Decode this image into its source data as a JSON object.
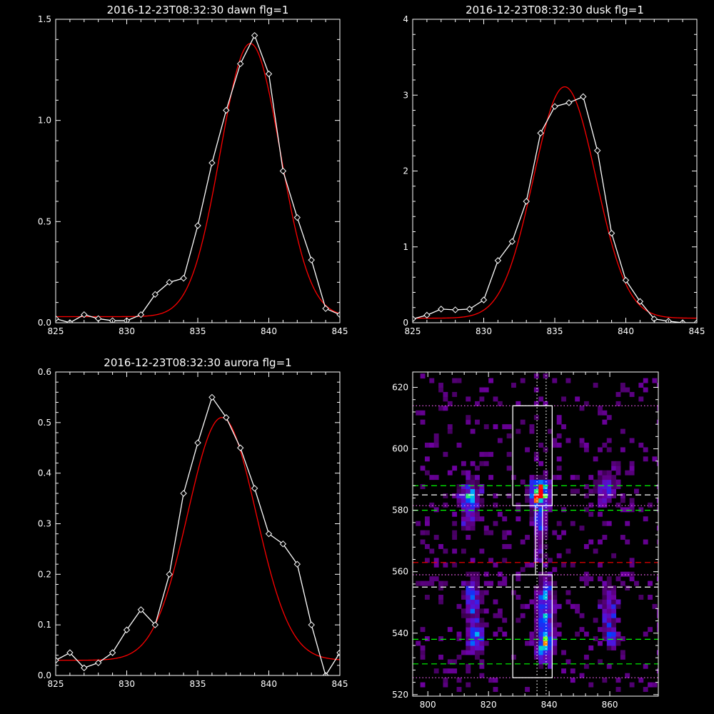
{
  "chart_data": [
    {
      "type": "line",
      "title": "2016-12-23T08:32:30 dawn flg=1",
      "xlim": [
        825,
        845
      ],
      "ylim": [
        0,
        1.5
      ],
      "xticks": [
        825,
        830,
        835,
        840,
        845
      ],
      "xtick_labels": [
        "825",
        "830",
        "835",
        "840",
        "845"
      ],
      "yticks": [
        0,
        0.5,
        1.0,
        1.5
      ],
      "ytick_labels": [
        "0.0",
        "0.5",
        "1.0",
        "1.5"
      ],
      "series": [
        {
          "style": "data",
          "color": "#ffffff",
          "x": [
            825,
            826,
            827,
            828,
            829,
            830,
            831,
            832,
            833,
            834,
            835,
            836,
            837,
            838,
            839,
            840,
            841,
            842,
            843,
            844,
            845
          ],
          "y": [
            0.02,
            0.0,
            0.04,
            0.02,
            0.01,
            0.01,
            0.04,
            0.14,
            0.2,
            0.22,
            0.48,
            0.79,
            1.05,
            1.28,
            1.42,
            1.23,
            0.75,
            0.52,
            0.31,
            0.07,
            0.04
          ]
        },
        {
          "style": "fit",
          "color": "#ff0000",
          "fit": {
            "amp": 1.35,
            "center": 838.7,
            "sigma": 2.1,
            "base": 0.03
          }
        }
      ]
    },
    {
      "type": "line",
      "title": "2016-12-23T08:32:30 dusk flg=1",
      "xlim": [
        825,
        845
      ],
      "ylim": [
        0,
        4
      ],
      "xticks": [
        825,
        830,
        835,
        840,
        845
      ],
      "xtick_labels": [
        "825",
        "830",
        "835",
        "840",
        "845"
      ],
      "yticks": [
        0,
        1,
        2,
        3,
        4
      ],
      "ytick_labels": [
        "0",
        "1",
        "2",
        "3",
        "4"
      ],
      "series": [
        {
          "style": "data",
          "color": "#ffffff",
          "x": [
            825,
            826,
            827,
            828,
            829,
            830,
            831,
            832,
            833,
            834,
            835,
            836,
            837,
            838,
            839,
            840,
            841,
            842,
            843,
            844,
            845
          ],
          "y": [
            0.05,
            0.1,
            0.18,
            0.17,
            0.18,
            0.3,
            0.82,
            1.07,
            1.6,
            2.5,
            2.85,
            2.9,
            2.98,
            2.27,
            1.18,
            0.56,
            0.28,
            0.05,
            0.02,
            0.0,
            0.0
          ]
        },
        {
          "style": "fit",
          "color": "#ff0000",
          "fit": {
            "amp": 3.05,
            "center": 835.7,
            "sigma": 2.2,
            "base": 0.06
          }
        }
      ]
    },
    {
      "type": "line",
      "title": "2016-12-23T08:32:30 aurora flg=1",
      "xlim": [
        825,
        845
      ],
      "ylim": [
        0,
        0.6
      ],
      "xticks": [
        825,
        830,
        835,
        840,
        845
      ],
      "xtick_labels": [
        "825",
        "830",
        "835",
        "840",
        "845"
      ],
      "yticks": [
        0,
        0.1,
        0.2,
        0.3,
        0.4,
        0.5,
        0.6
      ],
      "ytick_labels": [
        "0.0",
        "0.1",
        "0.2",
        "0.3",
        "0.4",
        "0.5",
        "0.6"
      ],
      "series": [
        {
          "style": "data",
          "color": "#ffffff",
          "x": [
            825,
            826,
            827,
            828,
            829,
            830,
            831,
            832,
            833,
            834,
            835,
            836,
            837,
            838,
            839,
            840,
            841,
            842,
            843,
            844,
            845
          ],
          "y": [
            0.03,
            0.045,
            0.015,
            0.025,
            0.045,
            0.09,
            0.13,
            0.1,
            0.2,
            0.36,
            0.46,
            0.55,
            0.51,
            0.45,
            0.37,
            0.28,
            0.26,
            0.22,
            0.1,
            0.0,
            0.045
          ]
        },
        {
          "style": "fit",
          "color": "#ff0000",
          "fit": {
            "amp": 0.48,
            "center": 836.7,
            "sigma": 2.4,
            "base": 0.03
          }
        }
      ]
    },
    {
      "type": "heatmap",
      "title": "",
      "xlim": [
        795,
        876
      ],
      "ylim": [
        519.5,
        625
      ],
      "xticks": [
        800,
        820,
        840,
        860
      ],
      "xtick_labels": [
        "800",
        "820",
        "840",
        "860"
      ],
      "yticks": [
        520,
        540,
        560,
        580,
        600,
        620
      ],
      "ytick_labels": [
        "520",
        "540",
        "560",
        "580",
        "600",
        "620"
      ],
      "blobs": [
        {
          "x": 813,
          "y": 584,
          "sx": 2.2,
          "sy": 3.0,
          "amp": 0.55
        },
        {
          "x": 813,
          "y": 576,
          "sx": 2.0,
          "sy": 2.5,
          "amp": 0.28
        },
        {
          "x": 836,
          "y": 585,
          "sx": 2.0,
          "sy": 2.6,
          "amp": 1.0
        },
        {
          "x": 836,
          "y": 577,
          "sx": 1.6,
          "sy": 4.0,
          "amp": 0.35
        },
        {
          "x": 836,
          "y": 567,
          "sx": 1.4,
          "sy": 3.0,
          "amp": 0.25
        },
        {
          "x": 858,
          "y": 587,
          "sx": 2.2,
          "sy": 3.0,
          "amp": 0.4
        },
        {
          "x": 838,
          "y": 548,
          "sx": 2.0,
          "sy": 6.0,
          "amp": 0.55
        },
        {
          "x": 838,
          "y": 535,
          "sx": 2.0,
          "sy": 3.5,
          "amp": 0.6
        },
        {
          "x": 814,
          "y": 550,
          "sx": 2.0,
          "sy": 5.5,
          "amp": 0.38
        },
        {
          "x": 815,
          "y": 537,
          "sx": 2.0,
          "sy": 3.0,
          "amp": 0.5
        },
        {
          "x": 859,
          "y": 548,
          "sx": 1.8,
          "sy": 5.5,
          "amp": 0.3
        },
        {
          "x": 860,
          "y": 538,
          "sx": 1.5,
          "sy": 2.5,
          "amp": 0.35
        }
      ],
      "boxes": [
        {
          "x0": 828,
          "x1": 841,
          "y0": 581.5,
          "y1": 614
        },
        {
          "x0": 828,
          "x1": 841,
          "y0": 525.5,
          "y1": 559
        }
      ],
      "hlines": [
        {
          "y": 614,
          "color": "#ff66ff",
          "style": "dotted"
        },
        {
          "y": 588,
          "color": "#00ff00",
          "style": "dashed"
        },
        {
          "y": 585,
          "color": "#ffffff",
          "style": "dashed"
        },
        {
          "y": 581.5,
          "color": "#ff66ff",
          "style": "dotted"
        },
        {
          "y": 580,
          "color": "#00ff00",
          "style": "dashed"
        },
        {
          "y": 563,
          "color": "#ff0000",
          "style": "dashed"
        },
        {
          "y": 559,
          "color": "#ff66ff",
          "style": "dotted"
        },
        {
          "y": 555,
          "color": "#ffffff",
          "style": "dashed"
        },
        {
          "y": 538,
          "color": "#00ff00",
          "style": "dashed"
        },
        {
          "y": 530,
          "color": "#00ff00",
          "style": "dashed"
        },
        {
          "y": 525.5,
          "color": "#ff66ff",
          "style": "dotted"
        }
      ],
      "vlines": [
        {
          "x": 836,
          "color": "#ffffff",
          "style": "dotted"
        },
        {
          "x": 839,
          "color": "#ffffff",
          "style": "dotted"
        }
      ]
    }
  ]
}
